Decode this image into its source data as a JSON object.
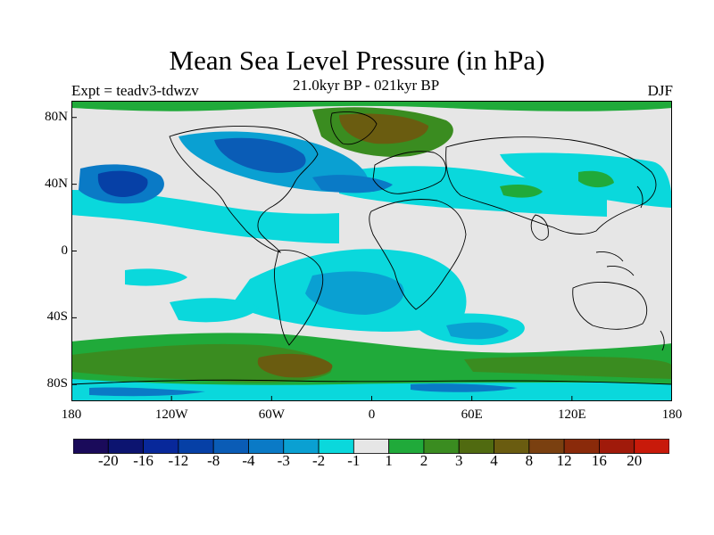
{
  "title": "Mean Sea Level Pressure (in hPa)",
  "subtitle": "21.0kyr BP - 021kyr BP",
  "left_label": "Expt = teadv3-tdwzv",
  "right_label": "DJF",
  "axes": {
    "y_ticks": [
      {
        "label": "80N",
        "lat": 80
      },
      {
        "label": "40N",
        "lat": 40
      },
      {
        "label": "0",
        "lat": 0
      },
      {
        "label": "40S",
        "lat": -40
      },
      {
        "label": "80S",
        "lat": -80
      }
    ],
    "x_ticks": [
      {
        "label": "180",
        "lon": -180
      },
      {
        "label": "120W",
        "lon": -120
      },
      {
        "label": "60W",
        "lon": -60
      },
      {
        "label": "0",
        "lon": 0
      },
      {
        "label": "60E",
        "lon": 60
      },
      {
        "label": "120E",
        "lon": 120
      },
      {
        "label": "180",
        "lon": 180
      }
    ],
    "lon_range": [
      -180,
      180
    ],
    "lat_range": [
      -90,
      90
    ]
  },
  "colorbar": {
    "colors": [
      "#1a0a5a",
      "#0c1470",
      "#08289a",
      "#0640a6",
      "#0a5cb6",
      "#0a7ac6",
      "#0aa0d2",
      "#0ad8dc",
      "#e6e6e6",
      "#20aa3a",
      "#3a8c20",
      "#506a10",
      "#6a5c10",
      "#7a4010",
      "#8a2a0a",
      "#a01a0a",
      "#c81a0a"
    ],
    "labels": [
      "-20",
      "-16",
      "-12",
      "-8",
      "-4",
      "-3",
      "-2",
      "-1",
      "1",
      "2",
      "3",
      "4",
      "8",
      "12",
      "16",
      "20"
    ]
  },
  "fields": {
    "background_color": "#e6e6e6",
    "levels": {
      "l1": "#0ad8dc",
      "l2": "#0aa0d2",
      "l3": "#0a7ac6",
      "l4": "#0a5cb6",
      "l5": "#0640a6",
      "g1": "#20aa3a",
      "g2": "#3a8c20",
      "g3": "#6a5c10"
    }
  }
}
